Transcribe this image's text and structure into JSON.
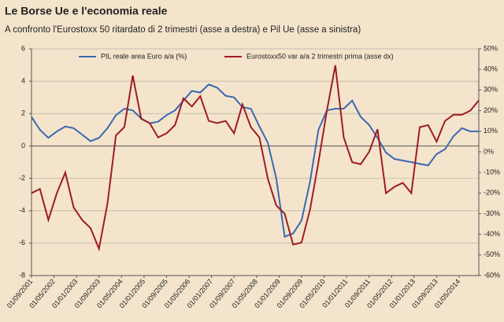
{
  "chart_data": {
    "type": "line",
    "title": "Le Borse Ue e l'economia reale",
    "subtitle": "A confronto l'Eurostoxx 50 ritardato di 2 trimestri (asse a destra) e Pil Ue (asse a sinistra)",
    "x": [
      "01/09/2001",
      "01/12/2001",
      "01/03/2002",
      "01/06/2002",
      "01/09/2002",
      "01/12/2002",
      "01/03/2003",
      "01/06/2003",
      "01/09/2003",
      "01/12/2003",
      "01/03/2004",
      "01/06/2004",
      "01/09/2004",
      "01/12/2004",
      "01/03/2005",
      "01/06/2005",
      "01/09/2005",
      "01/12/2005",
      "01/03/2006",
      "01/06/2006",
      "01/09/2006",
      "01/12/2006",
      "01/03/2007",
      "01/06/2007",
      "01/09/2007",
      "01/12/2007",
      "01/03/2008",
      "01/06/2008",
      "01/09/2008",
      "01/12/2008",
      "01/03/2009",
      "01/06/2009",
      "01/09/2009",
      "01/12/2009",
      "01/03/2010",
      "01/06/2010",
      "01/09/2010",
      "01/12/2010",
      "01/03/2011",
      "01/06/2011",
      "01/09/2011",
      "01/12/2011",
      "01/03/2012",
      "01/06/2012",
      "01/09/2012",
      "01/12/2012",
      "01/03/2013",
      "01/06/2013",
      "01/09/2013",
      "01/12/2013",
      "01/03/2014",
      "01/06/2014",
      "01/09/2014",
      "01/12/2014"
    ],
    "xlim": [
      "01/09/2001",
      "01/12/2014"
    ],
    "xticks": [
      "01/09/2001",
      "01/05/2002",
      "01/01/2003",
      "01/09/2003",
      "01/05/2004",
      "01/01/2005",
      "01/09/2005",
      "01/05/2006",
      "01/01/2007",
      "01/09/2007",
      "01/05/2008",
      "01/01/2009",
      "01/09/2009",
      "01/05/2010",
      "01/01/2011",
      "01/09/2011",
      "01/05/2012",
      "01/01/2013",
      "01/09/2013",
      "01/05/2014"
    ],
    "series": [
      {
        "name": "PIL reale area Euro a/a (%)",
        "color": "#3b68b4",
        "values": [
          1.8,
          1.0,
          0.5,
          0.9,
          1.2,
          1.1,
          0.7,
          0.3,
          0.5,
          1.1,
          1.9,
          2.3,
          2.2,
          1.7,
          1.4,
          1.5,
          1.9,
          2.2,
          2.8,
          3.4,
          3.3,
          3.8,
          3.6,
          3.1,
          3.0,
          2.4,
          2.3,
          1.2,
          0.2,
          -2.0,
          -5.6,
          -5.4,
          -4.6,
          -2.2,
          1.0,
          2.2,
          2.3,
          2.3,
          2.8,
          1.8,
          1.3,
          0.5,
          -0.4,
          -0.8,
          -0.9,
          -1.0,
          -1.1,
          -1.2,
          -0.5,
          -0.2,
          0.6,
          1.1,
          0.9,
          0.9
        ]
      },
      {
        "name": "Eurostoxx50 var a/a 2 trimestri prima (asse dx)",
        "color": "#9e1c24",
        "axis": "y2",
        "values": [
          -20,
          -18,
          -33,
          -20,
          -10,
          -27,
          -33,
          -37,
          -47,
          -25,
          8,
          12,
          37,
          16,
          14,
          7,
          9,
          13,
          26,
          22,
          27,
          15,
          14,
          15,
          9,
          23,
          12,
          7,
          -13,
          -26,
          -30,
          -45,
          -44,
          -28,
          -5,
          20,
          42,
          7,
          -5,
          -6,
          0,
          11,
          -20,
          -17,
          -15,
          -20,
          12,
          13,
          5,
          15,
          18,
          18,
          20,
          25
        ]
      }
    ],
    "ylim": [
      -8,
      6
    ],
    "yticks": [
      6,
      4,
      2,
      0,
      -2,
      -4,
      -6,
      -8
    ],
    "y2lim": [
      -60,
      50
    ],
    "y2ticks": [
      {
        "value": 50,
        "label": "50%"
      },
      {
        "value": 40,
        "label": "40%"
      },
      {
        "value": 30,
        "label": "30%"
      },
      {
        "value": 20,
        "label": "20%"
      },
      {
        "value": 10,
        "label": "10%"
      },
      {
        "value": 0,
        "label": "0%"
      },
      {
        "value": -10,
        "label": "-10%"
      },
      {
        "value": -20,
        "label": "-20%"
      },
      {
        "value": -30,
        "label": "-30%"
      },
      {
        "value": -40,
        "label": "-40%"
      },
      {
        "value": -50,
        "label": "-50%"
      },
      {
        "value": -60,
        "label": "-60%"
      }
    ],
    "grid": true,
    "legend": "top"
  }
}
